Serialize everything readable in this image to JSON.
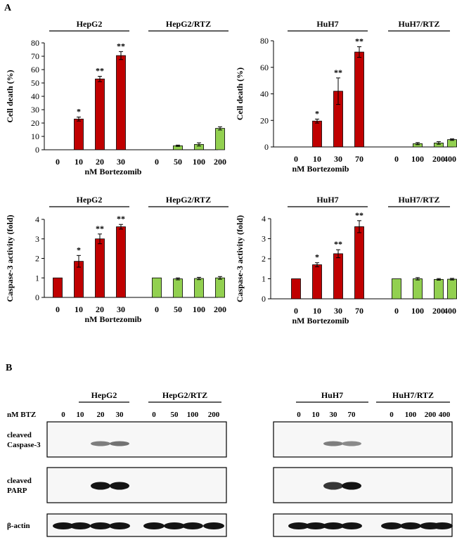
{
  "panel_labels": {
    "a": "A",
    "b": "B"
  },
  "colors": {
    "parental": "#c00000",
    "resistant": "#92d050",
    "axis": "#000000"
  },
  "chart_data": [
    {
      "id": "hepg2_death",
      "type": "bar",
      "ylabel": "Cell death (%)",
      "xlabel": "nM Bortezomib",
      "ylim": [
        0,
        80
      ],
      "yticks": [
        0,
        10,
        20,
        30,
        40,
        50,
        60,
        70,
        80
      ],
      "groups": [
        {
          "label": "HepG2",
          "series": "parental",
          "categories": [
            "0",
            "10",
            "20",
            "30"
          ],
          "values": [
            0,
            23,
            53,
            70.5
          ],
          "errors": [
            0,
            1.5,
            2,
            3
          ],
          "stars": [
            "",
            "*",
            "**",
            "**"
          ]
        },
        {
          "label": "HepG2/RTZ",
          "series": "resistant",
          "categories": [
            "0",
            "50",
            "100",
            "200"
          ],
          "values": [
            0,
            3,
            4,
            16
          ],
          "errors": [
            0,
            0.5,
            1.2,
            1.2
          ],
          "stars": [
            "",
            "",
            "",
            ""
          ]
        }
      ]
    },
    {
      "id": "huh7_death",
      "type": "bar",
      "ylabel": "Cell death (%)",
      "xlabel": "nM Bortezomib",
      "ylim": [
        0,
        80
      ],
      "yticks": [
        0,
        20,
        40,
        60,
        80
      ],
      "groups": [
        {
          "label": "HuH7",
          "series": "parental",
          "categories": [
            "0",
            "10",
            "30",
            "70"
          ],
          "values": [
            0,
            19.5,
            42,
            71.5
          ],
          "errors": [
            0,
            1.5,
            10,
            4
          ],
          "stars": [
            "",
            "*",
            "**",
            "**"
          ]
        },
        {
          "label": "HuH7/RTZ",
          "series": "resistant",
          "categories": [
            "0",
            "100",
            "200",
            "400"
          ],
          "values": [
            0,
            2.5,
            3,
            5.5
          ],
          "errors": [
            0,
            0.8,
            1,
            0.6
          ],
          "stars": [
            "",
            "",
            "",
            ""
          ]
        }
      ]
    },
    {
      "id": "hepg2_casp",
      "type": "bar",
      "ylabel": "Caspase-3 activity (fold)",
      "xlabel": "nM Bortezomib",
      "ylim": [
        0,
        4
      ],
      "yticks": [
        0,
        1,
        2,
        3,
        4
      ],
      "groups": [
        {
          "label": "HepG2",
          "series": "parental",
          "categories": [
            "0",
            "10",
            "20",
            "30"
          ],
          "values": [
            1,
            1.85,
            3.0,
            3.62
          ],
          "errors": [
            0,
            0.3,
            0.25,
            0.12
          ],
          "stars": [
            "",
            "*",
            "**",
            "**"
          ]
        },
        {
          "label": "HepG2/RTZ",
          "series": "resistant",
          "categories": [
            "0",
            "50",
            "100",
            "200"
          ],
          "values": [
            1,
            0.95,
            0.97,
            1.0
          ],
          "errors": [
            0,
            0.05,
            0.06,
            0.07
          ],
          "stars": [
            "",
            "",
            "",
            ""
          ]
        }
      ]
    },
    {
      "id": "huh7_casp",
      "type": "bar",
      "ylabel": "Caspase-3 activity (fold)",
      "xlabel": "nM Bortezomib",
      "ylim": [
        0,
        4
      ],
      "yticks": [
        0,
        1,
        2,
        3,
        4
      ],
      "groups": [
        {
          "label": "HuH7",
          "series": "parental",
          "categories": [
            "0",
            "10",
            "30",
            "70"
          ],
          "values": [
            1,
            1.7,
            2.25,
            3.6
          ],
          "errors": [
            0,
            0.1,
            0.2,
            0.3
          ],
          "stars": [
            "",
            "*",
            "**",
            "**"
          ]
        },
        {
          "label": "HuH7/RTZ",
          "series": "resistant",
          "categories": [
            "0",
            "100",
            "200",
            "400"
          ],
          "values": [
            1,
            1.0,
            0.97,
            0.98
          ],
          "errors": [
            0,
            0.06,
            0.04,
            0.04
          ],
          "stars": [
            "",
            "",
            "",
            ""
          ]
        }
      ]
    }
  ],
  "western": {
    "dose_label": "nM BTZ",
    "left": {
      "groups": [
        {
          "label": "HepG2",
          "doses": [
            "0",
            "10",
            "20",
            "30"
          ]
        },
        {
          "label": "HepG2/RTZ",
          "doses": [
            "0",
            "50",
            "100",
            "200"
          ]
        }
      ]
    },
    "right": {
      "groups": [
        {
          "label": "HuH7",
          "doses": [
            "0",
            "10",
            "30",
            "70"
          ]
        },
        {
          "label": "HuH7/RTZ",
          "doses": [
            "0",
            "100",
            "200",
            "400"
          ]
        }
      ]
    },
    "rows": [
      {
        "label_lines": [
          "cleaved",
          "Caspase-3"
        ],
        "left_intensity": [
          0,
          0,
          0.55,
          0.6,
          0,
          0,
          0,
          0
        ],
        "right_intensity": [
          0,
          0,
          0.55,
          0.5,
          0,
          0,
          0,
          0
        ]
      },
      {
        "label_lines": [
          "cleaved",
          "PARP"
        ],
        "left_intensity": [
          0,
          0,
          1,
          1,
          0,
          0,
          0,
          0
        ],
        "right_intensity": [
          0,
          0,
          0.85,
          1,
          0,
          0,
          0,
          0
        ]
      },
      {
        "label_lines": [
          "β-actin"
        ],
        "left_intensity": [
          1,
          1,
          1,
          1,
          1,
          1,
          1,
          1
        ],
        "right_intensity": [
          1,
          1,
          1,
          1,
          1,
          1,
          1,
          1
        ]
      }
    ]
  }
}
